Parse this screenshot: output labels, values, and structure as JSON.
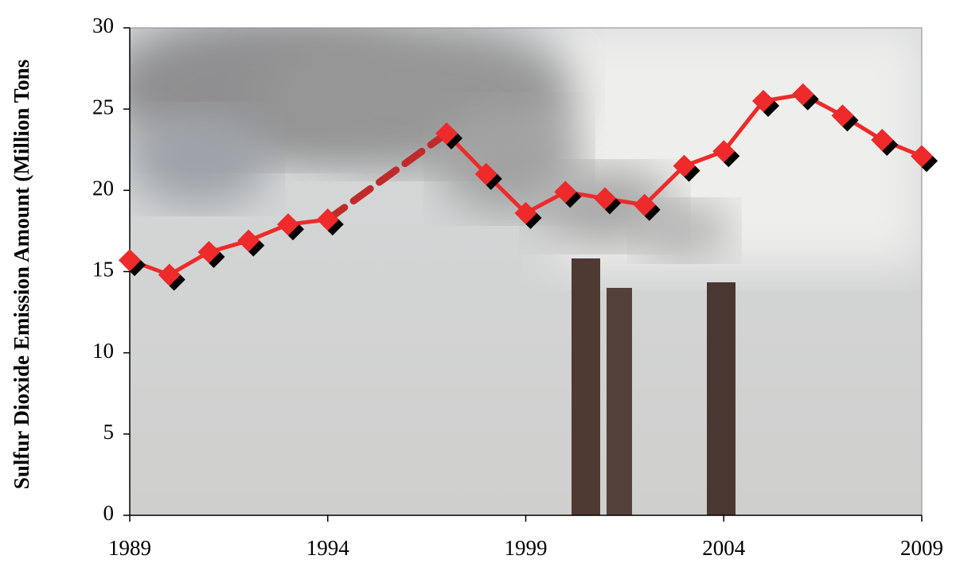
{
  "chart_data": {
    "type": "line",
    "ylabel": "Sulfur Dioxide Emission Amount (Million Tons",
    "x": [
      1989,
      1990,
      1991,
      1992,
      1993,
      1994,
      1997,
      1998,
      1999,
      2000,
      2001,
      2002,
      2003,
      2004,
      2005,
      2006,
      2007,
      2008,
      2009
    ],
    "values": [
      15.7,
      14.8,
      16.2,
      16.9,
      17.9,
      18.2,
      23.5,
      21.0,
      18.6,
      19.9,
      19.5,
      19.1,
      21.5,
      22.4,
      25.5,
      25.9,
      24.6,
      23.1,
      22.1
    ],
    "color": "#ee2a2a",
    "gap_color": "#c02a2a",
    "xlim": [
      1989,
      2009
    ],
    "xticks": [
      1989,
      1994,
      1999,
      2004,
      2009
    ],
    "ylim": [
      0,
      30
    ],
    "yticks": [
      0,
      5,
      10,
      15,
      20,
      25,
      30
    ]
  }
}
